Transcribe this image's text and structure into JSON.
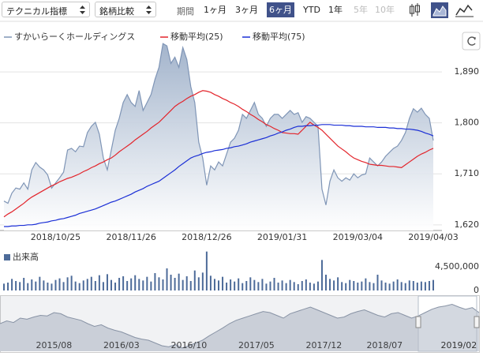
{
  "toolbar": {
    "technical": "テクニカル指標",
    "compare": "銘柄比較",
    "period_label": "期間",
    "periods": [
      {
        "label": "1ヶ月"
      },
      {
        "label": "3ヶ月"
      },
      {
        "label": "6ヶ月",
        "selected": true
      },
      {
        "label": "YTD"
      },
      {
        "label": "1年"
      },
      {
        "label": "5年",
        "disabled": true
      },
      {
        "label": "10年",
        "disabled": true
      }
    ]
  },
  "chart_data": [
    {
      "type": "line",
      "grid": true,
      "categories": [
        null,
        null,
        null,
        null,
        null,
        null,
        null,
        null,
        null,
        null,
        null,
        null,
        null,
        "2018/10/25",
        null,
        null,
        null,
        null,
        null,
        null,
        null,
        null,
        null,
        null,
        null,
        null,
        null,
        null,
        null,
        null,
        null,
        null,
        "2018/11/26",
        null,
        null,
        null,
        null,
        null,
        null,
        null,
        null,
        null,
        null,
        null,
        null,
        null,
        null,
        null,
        null,
        null,
        null,
        "2018/12/26",
        null,
        null,
        null,
        null,
        null,
        null,
        null,
        null,
        null,
        null,
        null,
        null,
        null,
        null,
        null,
        null,
        null,
        null,
        "2019/01/31",
        null,
        null,
        null,
        null,
        null,
        null,
        null,
        null,
        null,
        null,
        null,
        null,
        null,
        null,
        null,
        null,
        null,
        null,
        "2019/03/04",
        null,
        null,
        null,
        null,
        null,
        null,
        null,
        null,
        null,
        null,
        null,
        null,
        null,
        null,
        null,
        null,
        null,
        null,
        "2019/04/03"
      ],
      "series": [
        {
          "name": "すかいらーくホールディングス",
          "color": "#7f95b6",
          "values": [
            1662,
            1658,
            1676,
            1685,
            1683,
            1694,
            1683,
            1717,
            1730,
            1722,
            1717,
            1708,
            1685,
            1694,
            1703,
            1713,
            1752,
            1755,
            1749,
            1759,
            1758,
            1783,
            1794,
            1801,
            1780,
            1738,
            1717,
            1752,
            1787,
            1808,
            1836,
            1850,
            1836,
            1829,
            1857,
            1822,
            1836,
            1850,
            1877,
            1898,
            1940,
            1936,
            1905,
            1916,
            1898,
            1933,
            1912,
            1864,
            1836,
            1766,
            1738,
            1690,
            1724,
            1717,
            1731,
            1724,
            1745,
            1766,
            1773,
            1787,
            1815,
            1808,
            1822,
            1836,
            1815,
            1808,
            1794,
            1808,
            1815,
            1815,
            1808,
            1815,
            1822,
            1815,
            1818,
            1801,
            1811,
            1808,
            1801,
            1794,
            1683,
            1655,
            1697,
            1717,
            1703,
            1697,
            1703,
            1699,
            1710,
            1703,
            1708,
            1710,
            1738,
            1731,
            1724,
            1731,
            1741,
            1748,
            1755,
            1759,
            1769,
            1783,
            1808,
            1825,
            1819,
            1826,
            1815,
            1808,
            1769
          ]
        },
        {
          "name": "移動平均(25)",
          "color": "#e3242b",
          "values": [
            1634,
            1639,
            1643,
            1648,
            1653,
            1658,
            1664,
            1669,
            1673,
            1677,
            1681,
            1685,
            1689,
            1692,
            1696,
            1699,
            1702,
            1704,
            1707,
            1710,
            1714,
            1717,
            1721,
            1724,
            1728,
            1731,
            1735,
            1738,
            1743,
            1749,
            1754,
            1759,
            1764,
            1770,
            1775,
            1780,
            1785,
            1791,
            1796,
            1801,
            1808,
            1815,
            1822,
            1829,
            1834,
            1838,
            1843,
            1847,
            1850,
            1854,
            1857,
            1856,
            1854,
            1850,
            1847,
            1843,
            1840,
            1836,
            1833,
            1829,
            1824,
            1820,
            1815,
            1811,
            1806,
            1802,
            1797,
            1794,
            1790,
            1787,
            1783,
            1782,
            1781,
            1781,
            1780,
            1787,
            1794,
            1801,
            1796,
            1792,
            1787,
            1780,
            1773,
            1766,
            1759,
            1754,
            1749,
            1743,
            1738,
            1735,
            1732,
            1730,
            1727,
            1726,
            1725,
            1725,
            1724,
            1723,
            1723,
            1722,
            1721,
            1726,
            1731,
            1736,
            1741,
            1745,
            1748,
            1752,
            1755
          ]
        },
        {
          "name": "移動平均(75)",
          "color": "#1b2fd6",
          "values": [
            1617,
            1617,
            1618,
            1618,
            1619,
            1619,
            1620,
            1620,
            1621,
            1623,
            1624,
            1625,
            1627,
            1628,
            1630,
            1631,
            1633,
            1635,
            1637,
            1640,
            1642,
            1644,
            1646,
            1648,
            1651,
            1654,
            1657,
            1660,
            1662,
            1665,
            1668,
            1671,
            1674,
            1678,
            1681,
            1684,
            1688,
            1691,
            1694,
            1697,
            1702,
            1707,
            1712,
            1717,
            1723,
            1728,
            1733,
            1738,
            1741,
            1743,
            1746,
            1748,
            1749,
            1751,
            1752,
            1753,
            1755,
            1756,
            1758,
            1759,
            1761,
            1763,
            1766,
            1768,
            1770,
            1772,
            1774,
            1777,
            1779,
            1782,
            1784,
            1787,
            1789,
            1792,
            1794,
            1794,
            1795,
            1795,
            1796,
            1796,
            1797,
            1797,
            1797,
            1796,
            1796,
            1796,
            1795,
            1795,
            1794,
            1794,
            1794,
            1793,
            1793,
            1793,
            1792,
            1792,
            1792,
            1791,
            1791,
            1790,
            1790,
            1789,
            1789,
            1788,
            1787,
            1785,
            1782,
            1780,
            1777
          ]
        }
      ],
      "ylim": [
        1610,
        1964
      ],
      "yticks": [
        {
          "value": 1890,
          "label": "1,890"
        },
        {
          "value": 1800,
          "label": "1,800"
        },
        {
          "value": 1710,
          "label": "1,710"
        },
        {
          "value": 1620,
          "label": "1,620"
        }
      ]
    },
    {
      "type": "bar",
      "title": "出来高",
      "color": "#4d6b99",
      "grid": false,
      "values": [
        1300000,
        1500000,
        2200000,
        1800000,
        1600000,
        2400000,
        1400000,
        2100000,
        1700000,
        2600000,
        1900000,
        1500000,
        1300000,
        2000000,
        2300000,
        1600000,
        2500000,
        2800000,
        1700000,
        1400000,
        1900000,
        2200000,
        2600000,
        1800000,
        2900000,
        1600000,
        3100000,
        2000000,
        1500000,
        2400000,
        2700000,
        1800000,
        2300000,
        2900000,
        2200000,
        1900000,
        2600000,
        1700000,
        3300000,
        2500000,
        2100000,
        4200000,
        3000000,
        2400000,
        3200000,
        2000000,
        2700000,
        1800000,
        3800000,
        2500000,
        3400000,
        7400000,
        2800000,
        2200000,
        1900000,
        2600000,
        1500000,
        2100000,
        1700000,
        2300000,
        1400000,
        1800000,
        2500000,
        2000000,
        1600000,
        2200000,
        1300000,
        1700000,
        2400000,
        1500000,
        1900000,
        1400000,
        2000000,
        1600000,
        1200000,
        1800000,
        2100000,
        1500000,
        1300000,
        1700000,
        5800000,
        3000000,
        2200000,
        1900000,
        2500000,
        1600000,
        1400000,
        2000000,
        1800000,
        1500000,
        1700000,
        2300000,
        1600000,
        1400000,
        3000000,
        1900000,
        1500000,
        1300000,
        1700000,
        2100000,
        1600000,
        1400000,
        1900000,
        1800000,
        1500000,
        1700000,
        1600000,
        1800000,
        2000000
      ],
      "ylim": [
        0,
        7500000
      ],
      "yticks": [
        {
          "value": 4500000,
          "label": "4,500,000"
        },
        0
      ]
    },
    {
      "type": "area",
      "color": "#8893a5",
      "categories": [
        null,
        null,
        null,
        null,
        null,
        null,
        null,
        null,
        "2015/08",
        null,
        null,
        null,
        null,
        null,
        null,
        null,
        null,
        null,
        "2016/03",
        null,
        null,
        null,
        null,
        null,
        null,
        null,
        null,
        null,
        "2016/10",
        null,
        null,
        null,
        null,
        null,
        null,
        null,
        null,
        null,
        "2017/05",
        null,
        null,
        null,
        null,
        null,
        null,
        null,
        null,
        null,
        "2017/12",
        null,
        null,
        null,
        null,
        null,
        null,
        null,
        null,
        "2018/07",
        null,
        null,
        null,
        null,
        null,
        null,
        null,
        null,
        null,
        null,
        "2019/02",
        null,
        null,
        null
      ],
      "values": [
        1500,
        1550,
        1520,
        1600,
        1580,
        1620,
        1650,
        1640,
        1700,
        1680,
        1620,
        1590,
        1560,
        1500,
        1450,
        1480,
        1420,
        1380,
        1350,
        1300,
        1250,
        1220,
        1200,
        1150,
        1100,
        1080,
        1120,
        1060,
        1100,
        1150,
        1200,
        1280,
        1350,
        1420,
        1500,
        1560,
        1600,
        1640,
        1680,
        1720,
        1700,
        1650,
        1600,
        1680,
        1720,
        1760,
        1800,
        1750,
        1700,
        1650,
        1600,
        1620,
        1680,
        1720,
        1750,
        1700,
        1650,
        1620,
        1680,
        1700,
        1650,
        1600,
        1640,
        1700,
        1760,
        1800,
        1820,
        1850,
        1800,
        1760,
        1790,
        1700
      ],
      "ylim": [
        1000,
        2000
      ]
    }
  ]
}
